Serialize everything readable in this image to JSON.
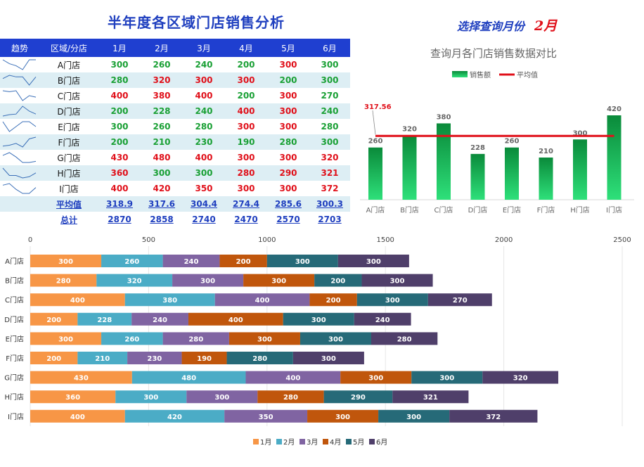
{
  "title": "半年度各区域门店销售分析",
  "month_picker": {
    "label": "选择查询月份",
    "selected": "2月"
  },
  "table": {
    "headers": [
      "趋势",
      "区域/分店",
      "1月",
      "2月",
      "3月",
      "4月",
      "5月",
      "6月"
    ],
    "rows": [
      {
        "store": "A门店",
        "values": [
          300,
          260,
          240,
          200,
          300,
          300
        ],
        "flags": [
          "g",
          "g",
          "g",
          "g",
          "r",
          "g"
        ]
      },
      {
        "store": "B门店",
        "values": [
          280,
          320,
          300,
          300,
          200,
          300
        ],
        "flags": [
          "g",
          "r",
          "r",
          "r",
          "g",
          "g"
        ]
      },
      {
        "store": "C门店",
        "values": [
          400,
          380,
          400,
          200,
          300,
          270
        ],
        "flags": [
          "r",
          "r",
          "r",
          "g",
          "r",
          "g"
        ]
      },
      {
        "store": "D门店",
        "values": [
          200,
          228,
          240,
          400,
          300,
          240
        ],
        "flags": [
          "g",
          "g",
          "g",
          "r",
          "r",
          "g"
        ]
      },
      {
        "store": "E门店",
        "values": [
          300,
          260,
          280,
          300,
          300,
          280
        ],
        "flags": [
          "g",
          "g",
          "g",
          "r",
          "r",
          "g"
        ]
      },
      {
        "store": "F门店",
        "values": [
          200,
          210,
          230,
          190,
          280,
          300
        ],
        "flags": [
          "g",
          "g",
          "g",
          "g",
          "g",
          "g"
        ]
      },
      {
        "store": "G门店",
        "values": [
          430,
          480,
          400,
          300,
          300,
          320
        ],
        "flags": [
          "r",
          "r",
          "r",
          "r",
          "r",
          "r"
        ]
      },
      {
        "store": "H门店",
        "values": [
          360,
          300,
          300,
          280,
          290,
          321
        ],
        "flags": [
          "r",
          "g",
          "g",
          "r",
          "r",
          "r"
        ]
      },
      {
        "store": "I门店",
        "values": [
          400,
          420,
          350,
          300,
          300,
          372
        ],
        "flags": [
          "r",
          "r",
          "r",
          "r",
          "r",
          "r"
        ]
      }
    ],
    "avg_label": "平均值",
    "avg_values": [
      "318.9",
      "317.6",
      "304.4",
      "274.4",
      "285.6",
      "300.3"
    ],
    "total_label": "总计",
    "total_values": [
      "2870",
      "2858",
      "2740",
      "2470",
      "2570",
      "2703"
    ]
  },
  "chart_data": [
    {
      "type": "bar",
      "title": "查询月各门店销售数据对比",
      "categories": [
        "A门店",
        "B门店",
        "C门店",
        "D门店",
        "E门店",
        "F门店",
        "H门店",
        "I门店"
      ],
      "series": [
        {
          "name": "销售额",
          "type": "bar",
          "values": [
            260,
            320,
            380,
            228,
            260,
            210,
            300,
            420
          ]
        },
        {
          "name": "平均值",
          "type": "line",
          "values": [
            317.56,
            317.56,
            317.56,
            317.56,
            317.56,
            317.56,
            317.56,
            317.56
          ]
        }
      ],
      "average_label": "317.56",
      "ylim": [
        0,
        460
      ],
      "legend": "top",
      "colors": {
        "bar_top": "#0a8a3a",
        "bar_bottom": "#2ee07a",
        "line": "#e0101a"
      }
    },
    {
      "type": "bar",
      "orientation": "horizontal",
      "stacked": true,
      "categories": [
        "A门店",
        "B门店",
        "C门店",
        "D门店",
        "E门店",
        "F门店",
        "G门店",
        "H门店",
        "I门店"
      ],
      "series": [
        {
          "name": "1月",
          "color": "#f79646",
          "values": [
            300,
            280,
            400,
            200,
            300,
            200,
            430,
            360,
            400
          ]
        },
        {
          "name": "2月",
          "color": "#4bacc6",
          "values": [
            260,
            320,
            380,
            228,
            260,
            210,
            480,
            300,
            420
          ]
        },
        {
          "name": "3月",
          "color": "#8064a2",
          "values": [
            240,
            300,
            400,
            240,
            280,
            230,
            400,
            300,
            350
          ]
        },
        {
          "name": "4月",
          "color": "#c0560c",
          "values": [
            200,
            300,
            200,
            400,
            300,
            190,
            300,
            280,
            300
          ]
        },
        {
          "name": "5月",
          "color": "#266a78",
          "values": [
            300,
            200,
            300,
            300,
            300,
            280,
            300,
            290,
            300
          ]
        },
        {
          "name": "6月",
          "color": "#4f3f6a",
          "values": [
            300,
            300,
            270,
            240,
            280,
            300,
            320,
            321,
            372
          ]
        }
      ],
      "xlim": [
        0,
        2500
      ],
      "xticks": [
        0,
        500,
        1000,
        1500,
        2000,
        2500
      ],
      "grid": true,
      "legend": "bottom"
    }
  ]
}
